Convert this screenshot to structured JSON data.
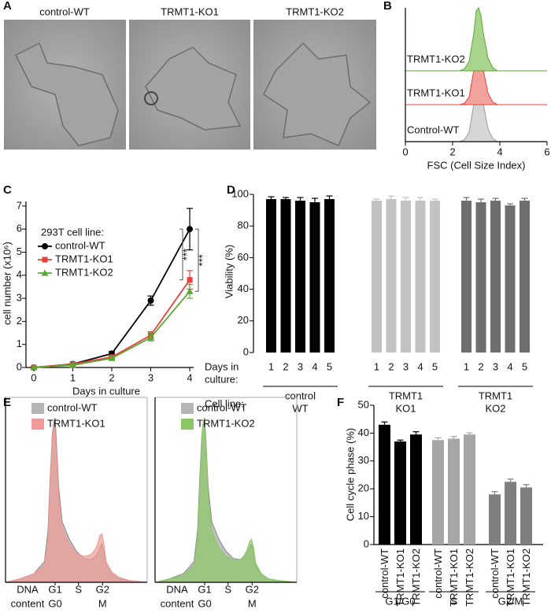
{
  "panel_labels": [
    "A",
    "B",
    "C",
    "D",
    "E",
    "F"
  ],
  "micrographs": {
    "labels": [
      "control-WT",
      "TRMT1-KO1",
      "TRMT1-KO2"
    ]
  },
  "chart_data": [
    {
      "type": "ridgeline",
      "xlabel": "FSC (Cell Size Index)",
      "xlim": [
        0,
        6
      ],
      "xticks": [
        0,
        2,
        4,
        6
      ],
      "x": [
        2.3,
        2.5,
        2.7,
        2.9,
        3.0,
        3.1,
        3.2,
        3.3,
        3.5,
        3.7,
        3.9
      ],
      "series": [
        {
          "name": "Control-WT",
          "color": "#9a9a9a",
          "fill": "#d6d6d6",
          "values": [
            0,
            0.03,
            0.15,
            0.6,
            0.9,
            1,
            0.9,
            0.6,
            0.2,
            0.05,
            0
          ]
        },
        {
          "name": "TRMT1-KO1",
          "color": "#e8403a",
          "fill": "#f2a29d",
          "values": [
            0,
            0.02,
            0.12,
            0.55,
            0.92,
            1,
            0.85,
            0.55,
            0.18,
            0.04,
            0
          ]
        },
        {
          "name": "TRMT1-KO2",
          "color": "#5aa832",
          "fill": "#a9d48d",
          "values": [
            0,
            0.03,
            0.15,
            0.6,
            0.95,
            1,
            0.88,
            0.6,
            0.2,
            0.05,
            0
          ]
        }
      ]
    },
    {
      "type": "line",
      "ylabel": "cell number (x10⁶)",
      "xlabel": "Days in culture",
      "legend_title": "293T cell line:",
      "x": [
        0,
        1,
        2,
        3,
        4
      ],
      "xlim": [
        -0.2,
        4.1
      ],
      "xticks": [
        0,
        1,
        2,
        3,
        4
      ],
      "ylim": [
        0,
        7.2
      ],
      "yticks": [
        0,
        1,
        2,
        3,
        4,
        5,
        6,
        7
      ],
      "annotations": [
        "***",
        "***"
      ],
      "series": [
        {
          "name": "control-WT",
          "color": "#000000",
          "marker": "circle",
          "values": [
            0,
            0.15,
            0.6,
            2.9,
            6.0
          ],
          "errors": [
            0.05,
            0.05,
            0.1,
            0.2,
            0.9
          ]
        },
        {
          "name": "TRMT1-KO1",
          "color": "#e8403a",
          "marker": "square",
          "values": [
            0,
            0.15,
            0.45,
            1.4,
            3.8
          ],
          "errors": [
            0.05,
            0.05,
            0.08,
            0.15,
            0.4
          ]
        },
        {
          "name": "TRMT1-KO2",
          "color": "#5aa832",
          "marker": "triangle",
          "values": [
            0,
            0.1,
            0.4,
            1.3,
            3.3
          ],
          "errors": [
            0.05,
            0.05,
            0.08,
            0.15,
            0.3
          ]
        }
      ]
    },
    {
      "type": "bar",
      "ylabel": "Viability (%)",
      "ylim": [
        0,
        100
      ],
      "yticks": [
        0,
        20,
        40,
        60,
        80,
        100
      ],
      "categories": [
        "1",
        "2",
        "3",
        "4",
        "5"
      ],
      "row_labels": {
        "days": [
          "Days in",
          "culture:"
        ],
        "cell_line": "Cell line:"
      },
      "series": [
        {
          "label": [
            "control",
            "WT"
          ],
          "color": "#000000",
          "values": [
            97,
            97,
            96,
            95,
            97
          ],
          "errors": [
            1.5,
            1,
            2,
            2.5,
            2
          ]
        },
        {
          "label": [
            "TRMT1",
            "KO1"
          ],
          "color": "#c2c2c2",
          "values": [
            96,
            97,
            96,
            96,
            96
          ],
          "errors": [
            1,
            2,
            2,
            2,
            1
          ]
        },
        {
          "label": [
            "TRMT1",
            "KO2"
          ],
          "color": "#6e6e6e",
          "values": [
            96,
            95,
            96,
            93,
            96
          ],
          "errors": [
            2,
            2,
            1.5,
            1,
            1.5
          ]
        }
      ]
    },
    {
      "type": "area",
      "xlim": [
        0,
        200
      ],
      "ylim": [
        0,
        100
      ],
      "xlabel_lines": [
        "DNA",
        "content"
      ],
      "xticks": [
        {
          "value": 70,
          "label": "G1"
        },
        {
          "value": 103,
          "label": "S"
        },
        {
          "value": 137,
          "label": "G2"
        }
      ],
      "xticks_sub": [
        {
          "value": 70,
          "label": "G0"
        },
        {
          "value": 137,
          "label": "M"
        }
      ],
      "x": [
        0,
        20,
        40,
        55,
        60,
        63,
        66,
        68,
        70,
        72,
        75,
        80,
        90,
        100,
        110,
        120,
        125,
        130,
        133,
        136,
        139,
        142,
        150,
        160,
        175,
        200
      ],
      "series": [
        {
          "name": "control-WT",
          "color": "#b5b5b5",
          "values": [
            0,
            2,
            5,
            12,
            30,
            60,
            85,
            92,
            95,
            80,
            55,
            35,
            25,
            18,
            14,
            13,
            14,
            17,
            20,
            22,
            18,
            10,
            5,
            2,
            1,
            0
          ]
        },
        {
          "name": "TRMT1-KO1",
          "color": "#ef9a96",
          "values": [
            0,
            2,
            5,
            10,
            25,
            55,
            82,
            90,
            88,
            75,
            50,
            32,
            22,
            17,
            15,
            16,
            18,
            22,
            27,
            28,
            22,
            12,
            6,
            3,
            1,
            0
          ]
        }
      ]
    },
    {
      "type": "area",
      "xlim": [
        0,
        200
      ],
      "ylim": [
        0,
        100
      ],
      "xlabel_lines": [
        "DNA",
        "content"
      ],
      "xticks": [
        {
          "value": 70,
          "label": "G1"
        },
        {
          "value": 103,
          "label": "S"
        },
        {
          "value": 137,
          "label": "G2"
        }
      ],
      "xticks_sub": [
        {
          "value": 70,
          "label": "G0"
        },
        {
          "value": 137,
          "label": "M"
        }
      ],
      "x": [
        0,
        20,
        40,
        55,
        60,
        63,
        66,
        68,
        70,
        72,
        75,
        80,
        90,
        100,
        110,
        120,
        125,
        130,
        133,
        136,
        139,
        142,
        150,
        160,
        175,
        200
      ],
      "series": [
        {
          "name": "control-WT",
          "color": "#b5b5b5",
          "values": [
            0,
            2,
            5,
            12,
            30,
            60,
            85,
            92,
            95,
            80,
            55,
            35,
            25,
            18,
            14,
            13,
            14,
            17,
            20,
            22,
            18,
            10,
            5,
            2,
            1,
            0
          ]
        },
        {
          "name": "TRMT1-KO2",
          "color": "#8cc766",
          "values": [
            0,
            2,
            4,
            10,
            25,
            55,
            85,
            93,
            90,
            78,
            50,
            30,
            20,
            15,
            13,
            13,
            15,
            19,
            23,
            25,
            20,
            11,
            5,
            2,
            1,
            0
          ]
        }
      ]
    },
    {
      "type": "bar",
      "ylabel": "Cell cycle phase (%)",
      "ylim": [
        0,
        50
      ],
      "yticks": [
        0,
        10,
        20,
        30,
        40,
        50
      ],
      "categories": [
        "control-WT",
        "TRMT1-KO1",
        "TRMT1-KO2"
      ],
      "series": [
        {
          "label": [
            "G1/G0"
          ],
          "color": "#000000",
          "values": [
            43,
            37,
            39.5
          ],
          "errors": [
            1,
            0.5,
            1
          ]
        },
        {
          "label": [
            "S"
          ],
          "color": "#a6a6a6",
          "values": [
            37.5,
            38,
            39.5
          ],
          "errors": [
            0.8,
            0.8,
            0.6
          ]
        },
        {
          "label": [
            "G2/M"
          ],
          "color": "#7f7f7f",
          "values": [
            18,
            22.5,
            20.5
          ],
          "errors": [
            1,
            1,
            1
          ]
        }
      ]
    }
  ]
}
